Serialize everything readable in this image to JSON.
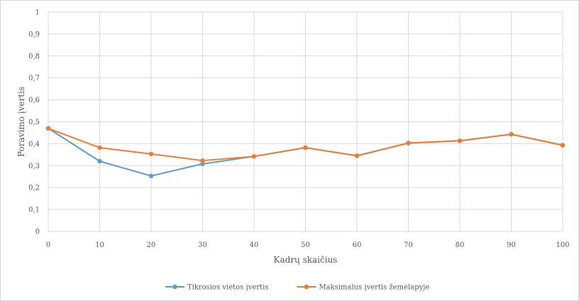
{
  "chart_data": {
    "type": "line",
    "title": "",
    "xlabel": "Kadrų skaičius",
    "ylabel": "Poravimo įvertis",
    "x": [
      0,
      10,
      20,
      30,
      40,
      50,
      60,
      70,
      80,
      90,
      100
    ],
    "xlim": [
      0,
      100
    ],
    "ylim": [
      0,
      1
    ],
    "yticks": [
      "0",
      "0,1",
      "0,2",
      "0,3",
      "0,4",
      "0,5",
      "0,6",
      "0,7",
      "0,8",
      "0,9",
      "1"
    ],
    "grid": true,
    "legend_position": "bottom",
    "series": [
      {
        "name": "Tikrosios vietos įvertis",
        "color": "#5b9bd5",
        "values": [
          0.47,
          0.32,
          0.253,
          0.308,
          0.342,
          0.382,
          0.345,
          0.403,
          0.413,
          0.443,
          0.393
        ]
      },
      {
        "name": "Maksimalus įvertis žemėlapyje",
        "color": "#ed7d31",
        "values": [
          0.47,
          0.382,
          0.353,
          0.323,
          0.342,
          0.382,
          0.345,
          0.403,
          0.413,
          0.443,
          0.393
        ]
      }
    ]
  }
}
